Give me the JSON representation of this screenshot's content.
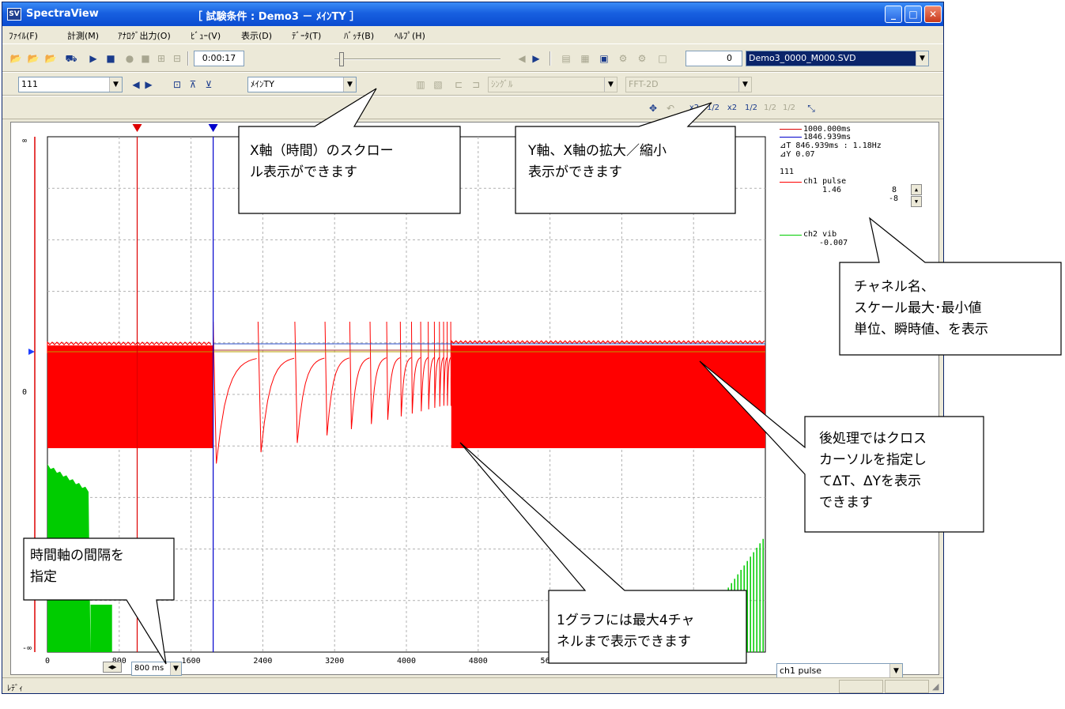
{
  "window": {
    "app_title": "SpectraView",
    "caption": "［ 試験条件 : Demo3 － ﾒｲﾝTY ］",
    "icon_text": "SV",
    "buttons": {
      "minimize": "_",
      "maximize": "□",
      "close": "✕"
    }
  },
  "menu": [
    "ﾌｧｲﾙ(F)",
    "計測(M)",
    "ｱﾅﾛｸﾞ出力(O)",
    "ﾋﾞｭｰ(V)",
    "表示(D)",
    "ﾃﾞｰﾀ(T)",
    "ﾊﾞｯﾁ(B)",
    "ﾍﾙﾌﾟ(H)"
  ],
  "toolbar1": {
    "time_value": "0:00:17",
    "count_value": "0",
    "file_combo": "Demo3_0000_M000.SVD"
  },
  "toolbar2": {
    "graph_combo": "111",
    "view_combo": "ﾒｲﾝTY",
    "mode_combo": "ｼﾝｸﾞﾙ",
    "analysis_combo": "FFT-2D"
  },
  "toolbar3": {
    "zoom_labels": [
      "x2",
      "1/2",
      "x2",
      "1/2",
      "1/2",
      "1/2"
    ]
  },
  "plot": {
    "y_top": "∞",
    "y_mid": "0",
    "y_bottom": "-∞",
    "x_ticks": [
      "0",
      "800",
      "1600",
      "2400",
      "3200",
      "4000",
      "4800",
      "5600"
    ],
    "interval_value": "800 ms"
  },
  "chart_data": {
    "type": "line",
    "xlabel": "",
    "ylabel": "",
    "xlim": [
      0,
      8000
    ],
    "x_tick_values": [
      0,
      800,
      1600,
      2400,
      3200,
      4000,
      4800,
      5600
    ],
    "grid": true,
    "series": [
      {
        "name": "ch1 pulse",
        "color": "#ff0000"
      },
      {
        "name": "ch2 vib",
        "color": "#00cc00"
      }
    ],
    "cursors": [
      {
        "x": 1000,
        "color": "#dd0000"
      },
      {
        "x": 1846.939,
        "color": "#0000cc"
      }
    ]
  },
  "legend": {
    "cursor1": "1000.000ms",
    "cursor2": "1846.939ms",
    "delta_t": "⊿T 846.939ms : 1.18Hz",
    "delta_y": "⊿Y 0.07",
    "graph_name": "111",
    "ch1_name": "ch1 pulse",
    "ch1_value": "1.46",
    "ch1_max": "8",
    "ch1_min": "-8",
    "ch2_name": "ch2 vib",
    "ch2_value": "-0.007",
    "channel_select": "ch1 pulse",
    "colors": {
      "cursor1": "#dd0000",
      "cursor2": "#0000cc",
      "ch1": "#ff0000",
      "ch2": "#00cc00"
    }
  },
  "status": "ﾚﾃﾞｨ",
  "callouts": {
    "scroll": "X軸（時間）のスクロー\nル表示ができます",
    "zoom": "Y軸、X軸の拡大／縮小\n表示ができます",
    "channel": "チャネル名、\nスケール最大･最小値\n単位、瞬時値、を表示",
    "cursor": "後処理ではクロス\nカーソルを指定し\nてΔT、ΔYを表示\nできます",
    "interval": "時間軸の間隔を\n指定",
    "maxch": "1グラフには最大4チャ\nネルまで表示できます"
  }
}
